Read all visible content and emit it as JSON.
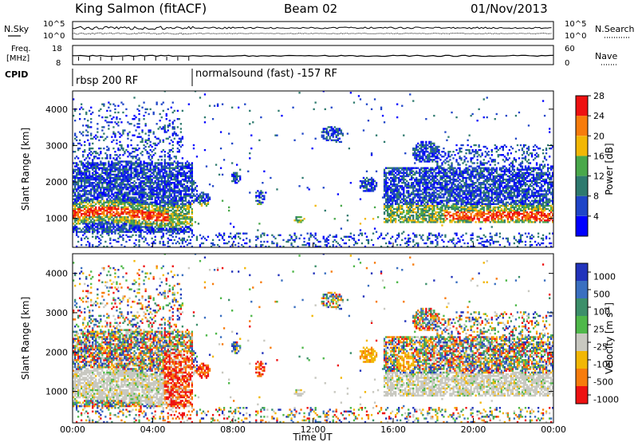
{
  "header": {
    "station": "King Salmon (fitACF)",
    "beam": "Beam 02",
    "date": "01/Nov/2013"
  },
  "noise_panel": {
    "left_label": "N.Sky",
    "right_label": "N.Search",
    "left_ticks": [
      "10^5",
      "10^0"
    ],
    "right_ticks": [
      "10^5",
      "10^0"
    ]
  },
  "freq_panel": {
    "left_label_1": "Freq.",
    "left_label_2": "[MHz]",
    "right_label": "Nave",
    "left_ticks": [
      "18",
      "8"
    ],
    "right_ticks": [
      "60",
      "0"
    ]
  },
  "cpid": {
    "label": "CPID",
    "segments": [
      {
        "text": "rbsp 200 RF",
        "start_hour": 0
      },
      {
        "text": "normalsound (fast) -157 RF",
        "start_hour": 6
      }
    ]
  },
  "chart_data": [
    {
      "type": "heatmap",
      "name": "power",
      "ylabel": "Slant Range [km]",
      "xlabel": "",
      "ylim": [
        200,
        4500
      ],
      "yticks": [
        "1000",
        "2000",
        "3000",
        "4000"
      ],
      "colorbar": {
        "label": "Power [dB]",
        "ticks": [
          "4",
          "8",
          "12",
          "16",
          "20",
          "24",
          "28"
        ],
        "colors": [
          "#0000ff",
          "#1f45c8",
          "#2e7a6e",
          "#49a84a",
          "#f2b705",
          "#f77c0c",
          "#ee1111"
        ]
      },
      "features": [
        {
          "t0": 0,
          "t1": 6,
          "r0": 700,
          "r1": 2400,
          "level": "mid"
        },
        {
          "t0": 0,
          "t1": 4.5,
          "r0": 950,
          "r1": 1250,
          "level": "high"
        },
        {
          "t0": 15.5,
          "t1": 24,
          "r0": 900,
          "r1": 2400,
          "level": "mid"
        },
        {
          "t0": 18.5,
          "t1": 24,
          "r0": 950,
          "r1": 1200,
          "level": "high"
        }
      ]
    },
    {
      "type": "heatmap",
      "name": "velocity",
      "ylabel": "Slant Range [km]",
      "xlabel": "Time UT",
      "ylim": [
        200,
        4500
      ],
      "yticks": [
        "1000",
        "2000",
        "3000",
        "4000"
      ],
      "xticks": [
        "00:00",
        "04:00",
        "08:00",
        "12:00",
        "16:00",
        "20:00",
        "00:00"
      ],
      "colorbar": {
        "label": "Velocity [m s",
        "label_sup": "-1",
        "label_end": "]",
        "ticks": [
          "1000",
          "500",
          "100",
          "25",
          "-25",
          "-100",
          "-500",
          "-1000"
        ],
        "colors": [
          "#2233bb",
          "#3a6fc0",
          "#3c8f6a",
          "#4fb84a",
          "#c8c8c0",
          "#f2b705",
          "#f77c0c",
          "#ee1111"
        ]
      }
    }
  ]
}
